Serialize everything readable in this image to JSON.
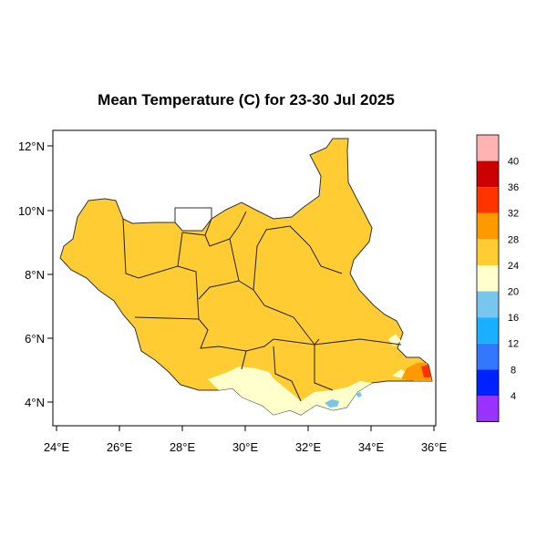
{
  "title": "Mean Temperature (C) for 23-30 Jul 2025",
  "x_ticks": [
    "24°E",
    "26°E",
    "28°E",
    "30°E",
    "32°E",
    "34°E",
    "36°E"
  ],
  "y_ticks": [
    "12°N",
    "10°N",
    "8°N",
    "6°N",
    "4°N"
  ],
  "colorbar": {
    "labels": [
      "40",
      "36",
      "32",
      "28",
      "24",
      "20",
      "16",
      "12",
      "8",
      "4"
    ],
    "colors": [
      "#ffb3b3",
      "#cc0000",
      "#ff3300",
      "#ff9900",
      "#ffcc33",
      "#ffffcc",
      "#77c6f0",
      "#1ab0ff",
      "#3377ff",
      "#0022ff",
      "#9933ff"
    ]
  },
  "fill_colors": {
    "land_main": "#ffcc33",
    "land_cool": "#ffffcc",
    "land_cold": "#77c6f0",
    "land_warm": "#ff9900",
    "land_hot": "#ff3300"
  }
}
